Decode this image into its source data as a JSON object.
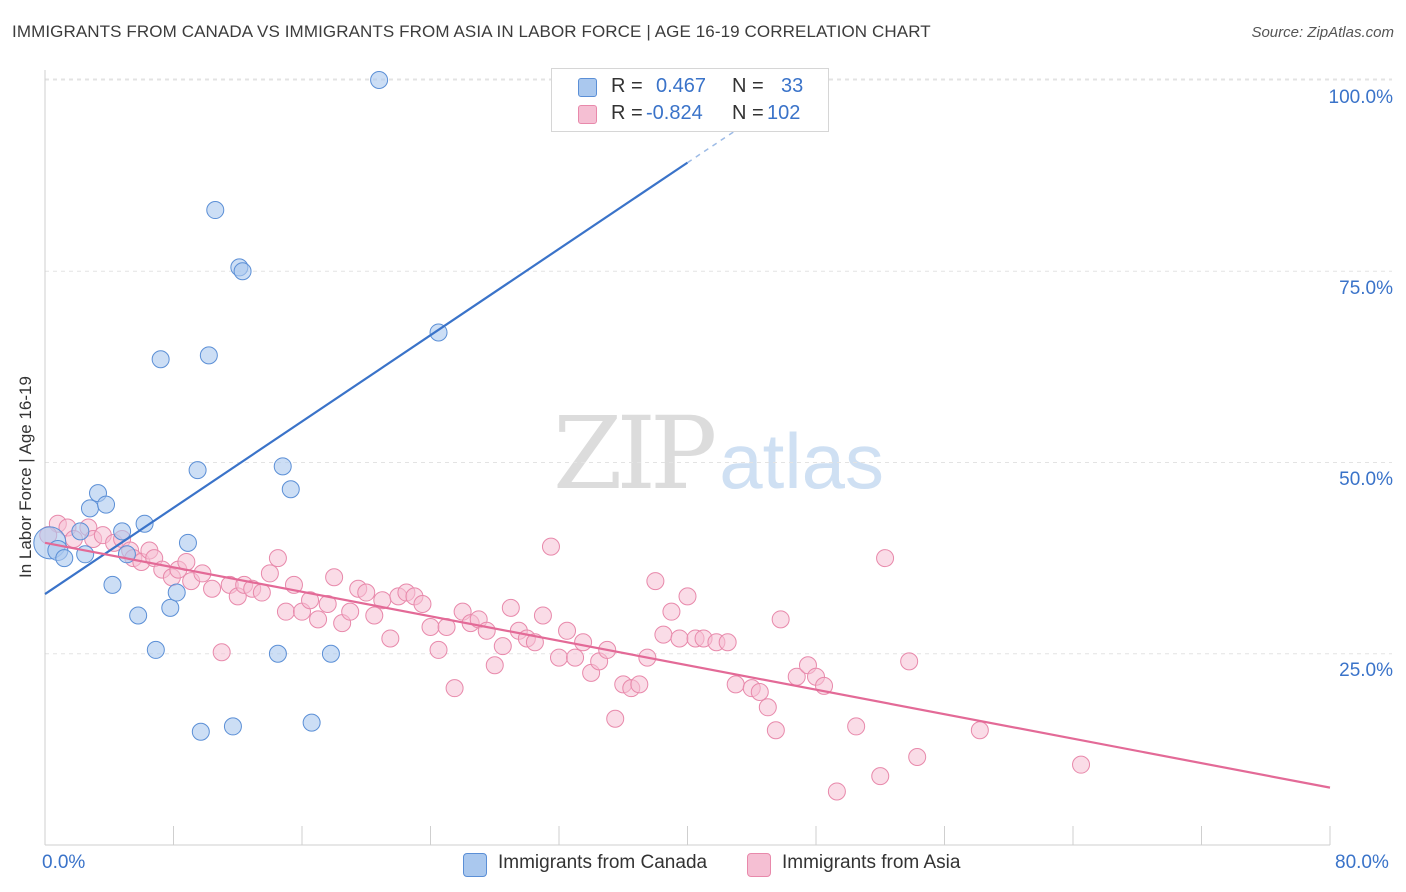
{
  "title": "IMMIGRANTS FROM CANADA VS IMMIGRANTS FROM ASIA IN LABOR FORCE | AGE 16-19 CORRELATION CHART",
  "source": "Source: ZipAtlas.com",
  "watermark": {
    "zip": "ZIP",
    "atlas": "atlas"
  },
  "legend": {
    "rows": [
      {
        "r_label": "R =",
        "r_value": "0.467",
        "n_label": "N =",
        "n_value": "33"
      },
      {
        "r_label": "R =",
        "r_value": "-0.824",
        "n_label": "N =",
        "n_value": "102"
      }
    ]
  },
  "colors": {
    "canada_fill": "#aac8ee",
    "canada_stroke": "#5b8fd6",
    "canada_line": "#3a73c9",
    "asia_fill": "#f5bfd3",
    "asia_stroke": "#e889ab",
    "asia_line": "#e36a97",
    "grid": "#e3e3e3",
    "axis_text": "#3a73c9"
  },
  "chart_data": {
    "type": "scatter",
    "title": "IMMIGRANTS FROM CANADA VS IMMIGRANTS FROM ASIA IN LABOR FORCE | AGE 16-19 CORRELATION CHART",
    "xlabel": "",
    "ylabel": "In Labor Force | Age 16-19",
    "xlim": [
      0,
      80
    ],
    "ylim": [
      0,
      104
    ],
    "x_tick_labels": [
      "0.0%",
      "80.0%"
    ],
    "y_tick_labels": [
      "100.0%",
      "75.0%",
      "50.0%",
      "25.0%"
    ],
    "y_ticks": [
      100,
      75,
      50,
      25
    ],
    "grid": true,
    "legend_position": "bottom-center",
    "series": [
      {
        "name": "Immigrants from Canada",
        "r": 0.467,
        "n": 33,
        "trend": {
          "x": [
            0,
            40
          ],
          "y": [
            32.8,
            89.2
          ],
          "dashed_to": [
            44,
            94.8
          ]
        },
        "points": [
          [
            0.3,
            39.5
          ],
          [
            0.8,
            38.5
          ],
          [
            1.2,
            37.5
          ],
          [
            2.2,
            41.0
          ],
          [
            2.5,
            38.0
          ],
          [
            2.8,
            44.0
          ],
          [
            3.3,
            46.0
          ],
          [
            3.8,
            44.5
          ],
          [
            4.2,
            34.0
          ],
          [
            4.8,
            41.0
          ],
          [
            5.1,
            38.0
          ],
          [
            5.8,
            30.0
          ],
          [
            6.2,
            42.0
          ],
          [
            6.9,
            25.5
          ],
          [
            7.2,
            63.5
          ],
          [
            7.8,
            31.0
          ],
          [
            8.2,
            33.0
          ],
          [
            8.9,
            39.5
          ],
          [
            9.5,
            49.0
          ],
          [
            9.7,
            14.8
          ],
          [
            10.2,
            64.0
          ],
          [
            10.6,
            83.0
          ],
          [
            11.7,
            15.5
          ],
          [
            12.1,
            75.5
          ],
          [
            12.3,
            75.0
          ],
          [
            14.5,
            25.0
          ],
          [
            14.8,
            49.5
          ],
          [
            15.3,
            46.5
          ],
          [
            16.6,
            16.0
          ],
          [
            17.8,
            25.0
          ],
          [
            20.8,
            100.0
          ],
          [
            24.5,
            67.0
          ],
          [
            33.5,
            100.0
          ]
        ]
      },
      {
        "name": "Immigrants from Asia",
        "r": -0.824,
        "n": 102,
        "trend": {
          "x": [
            0,
            80
          ],
          "y": [
            39.5,
            7.5
          ]
        },
        "points": [
          [
            0.8,
            42.0
          ],
          [
            1.4,
            41.5
          ],
          [
            1.8,
            40.0
          ],
          [
            2.7,
            41.5
          ],
          [
            3.0,
            40.0
          ],
          [
            3.6,
            40.5
          ],
          [
            4.3,
            39.5
          ],
          [
            4.8,
            40.0
          ],
          [
            5.3,
            38.5
          ],
          [
            5.5,
            37.5
          ],
          [
            6.0,
            37.0
          ],
          [
            6.5,
            38.5
          ],
          [
            6.8,
            37.5
          ],
          [
            7.3,
            36.0
          ],
          [
            7.9,
            35.0
          ],
          [
            8.3,
            36.0
          ],
          [
            8.8,
            37.0
          ],
          [
            9.1,
            34.5
          ],
          [
            9.8,
            35.5
          ],
          [
            10.4,
            33.5
          ],
          [
            11.0,
            25.2
          ],
          [
            11.5,
            34.0
          ],
          [
            12.0,
            32.5
          ],
          [
            12.4,
            34.0
          ],
          [
            12.9,
            33.5
          ],
          [
            13.5,
            33.0
          ],
          [
            14.0,
            35.5
          ],
          [
            14.5,
            37.5
          ],
          [
            15.0,
            30.5
          ],
          [
            15.5,
            34.0
          ],
          [
            16.0,
            30.5
          ],
          [
            16.5,
            32.0
          ],
          [
            17.0,
            29.5
          ],
          [
            17.6,
            31.5
          ],
          [
            18.0,
            35.0
          ],
          [
            18.5,
            29.0
          ],
          [
            19.0,
            30.5
          ],
          [
            19.5,
            33.5
          ],
          [
            20.0,
            33.0
          ],
          [
            20.5,
            30.0
          ],
          [
            21.0,
            32.0
          ],
          [
            21.5,
            27.0
          ],
          [
            22.0,
            32.5
          ],
          [
            22.5,
            33.0
          ],
          [
            23.0,
            32.5
          ],
          [
            23.5,
            31.5
          ],
          [
            24.0,
            28.5
          ],
          [
            24.5,
            25.5
          ],
          [
            25.0,
            28.5
          ],
          [
            25.5,
            20.5
          ],
          [
            26.0,
            30.5
          ],
          [
            26.5,
            29.0
          ],
          [
            27.0,
            29.5
          ],
          [
            27.5,
            28.0
          ],
          [
            28.0,
            23.5
          ],
          [
            28.5,
            26.0
          ],
          [
            29.0,
            31.0
          ],
          [
            29.5,
            28.0
          ],
          [
            30.0,
            27.0
          ],
          [
            30.5,
            26.5
          ],
          [
            31.0,
            30.0
          ],
          [
            31.5,
            39.0
          ],
          [
            32.0,
            24.5
          ],
          [
            32.5,
            28.0
          ],
          [
            33.0,
            24.5
          ],
          [
            33.5,
            26.5
          ],
          [
            34.0,
            22.5
          ],
          [
            34.5,
            24.0
          ],
          [
            35.0,
            25.5
          ],
          [
            35.5,
            16.5
          ],
          [
            36.0,
            21.0
          ],
          [
            36.5,
            20.5
          ],
          [
            37.0,
            21.0
          ],
          [
            37.5,
            24.5
          ],
          [
            38.0,
            34.5
          ],
          [
            38.5,
            27.5
          ],
          [
            39.0,
            30.5
          ],
          [
            39.5,
            27.0
          ],
          [
            40.0,
            32.5
          ],
          [
            40.5,
            27.0
          ],
          [
            41.0,
            27.0
          ],
          [
            41.8,
            26.5
          ],
          [
            42.5,
            26.5
          ],
          [
            43.0,
            21.0
          ],
          [
            44.0,
            20.5
          ],
          [
            44.5,
            20.0
          ],
          [
            45.0,
            18.0
          ],
          [
            45.5,
            15.0
          ],
          [
            45.8,
            29.5
          ],
          [
            46.8,
            22.0
          ],
          [
            47.5,
            23.5
          ],
          [
            48.0,
            22.0
          ],
          [
            48.5,
            20.8
          ],
          [
            49.3,
            7.0
          ],
          [
            50.5,
            15.5
          ],
          [
            52.0,
            9.0
          ],
          [
            52.3,
            37.5
          ],
          [
            53.8,
            24.0
          ],
          [
            54.3,
            11.5
          ],
          [
            58.2,
            15.0
          ],
          [
            64.5,
            10.5
          ],
          [
            0.2,
            40.5
          ]
        ]
      }
    ]
  },
  "bottom_legend": {
    "items": [
      "Immigrants from Canada",
      "Immigrants from Asia"
    ]
  }
}
